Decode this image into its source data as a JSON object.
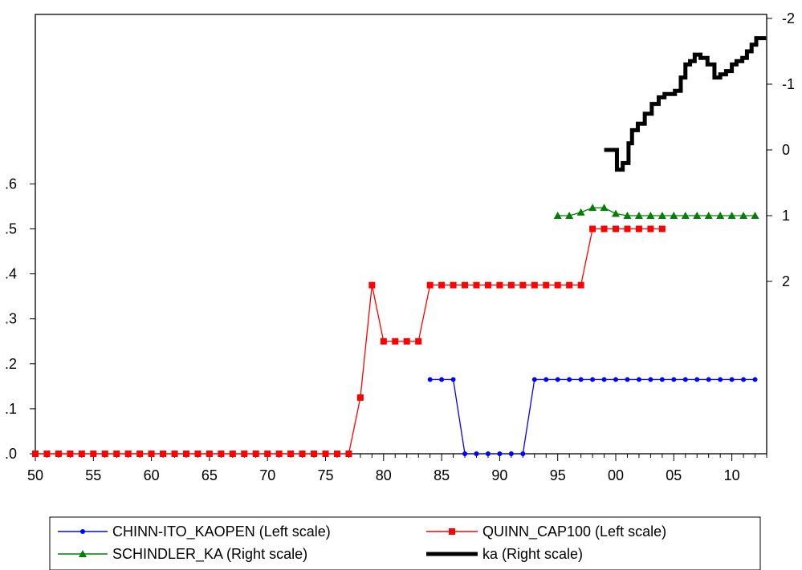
{
  "chart_data": {
    "type": "line",
    "x_axis": {
      "min": 1950,
      "max": 2013,
      "tick_values": [
        1950,
        1955,
        1960,
        1965,
        1970,
        1975,
        1980,
        1985,
        1990,
        1995,
        2000,
        2005,
        2010
      ],
      "tick_labels": [
        "50",
        "55",
        "60",
        "65",
        "70",
        "75",
        "80",
        "85",
        "90",
        "95",
        "00",
        "05",
        "10"
      ]
    },
    "left_axis": {
      "min": 0.0,
      "max": 1.0,
      "tick_values": [
        0.0,
        0.1,
        0.2,
        0.3,
        0.4,
        0.5,
        0.6
      ],
      "tick_labels": [
        ".0",
        ".1",
        ".2",
        ".3",
        ".4",
        ".5",
        ".6"
      ]
    },
    "right_axis": {
      "inverted": true,
      "min": -2,
      "max": 4.4,
      "tick_values": [
        -2,
        -1,
        0,
        1,
        2
      ],
      "tick_labels": [
        "-2",
        "-1",
        "0",
        "1",
        "2"
      ]
    },
    "grid": false,
    "legend_position": "bottom",
    "series": [
      {
        "name": "CHINN-ITO_KAOPEN (Left scale)",
        "axis": "left",
        "color": "#0000ff",
        "marker": "circle",
        "x": [
          1984,
          1985,
          1986,
          1987,
          1988,
          1989,
          1990,
          1991,
          1992,
          1993,
          1994,
          1995,
          1996,
          1997,
          1998,
          1999,
          2000,
          2001,
          2002,
          2003,
          2004,
          2005,
          2006,
          2007,
          2008,
          2009,
          2010,
          2011,
          2012
        ],
        "y": [
          0.165,
          0.165,
          0.165,
          0.0,
          0.0,
          0.0,
          0.0,
          0.0,
          0.0,
          0.165,
          0.165,
          0.165,
          0.165,
          0.165,
          0.165,
          0.165,
          0.165,
          0.165,
          0.165,
          0.165,
          0.165,
          0.165,
          0.165,
          0.165,
          0.165,
          0.165,
          0.165,
          0.165,
          0.165
        ]
      },
      {
        "name": "QUINN_CAP100 (Left scale)",
        "axis": "left",
        "color": "#ff0000",
        "marker": "square",
        "x": [
          1950,
          1951,
          1952,
          1953,
          1954,
          1955,
          1956,
          1957,
          1958,
          1959,
          1960,
          1961,
          1962,
          1963,
          1964,
          1965,
          1966,
          1967,
          1968,
          1969,
          1970,
          1971,
          1972,
          1973,
          1974,
          1975,
          1976,
          1977,
          1978,
          1979,
          1980,
          1981,
          1982,
          1983,
          1984,
          1985,
          1986,
          1987,
          1988,
          1989,
          1990,
          1991,
          1992,
          1993,
          1994,
          1995,
          1996,
          1997,
          1998,
          1999,
          2000,
          2001,
          2002,
          2003,
          2004
        ],
        "y": [
          0,
          0,
          0,
          0,
          0,
          0,
          0,
          0,
          0,
          0,
          0,
          0,
          0,
          0,
          0,
          0,
          0,
          0,
          0,
          0,
          0,
          0,
          0,
          0,
          0,
          0,
          0,
          0,
          0.125,
          0.375,
          0.25,
          0.25,
          0.25,
          0.25,
          0.375,
          0.375,
          0.375,
          0.375,
          0.375,
          0.375,
          0.375,
          0.375,
          0.375,
          0.375,
          0.375,
          0.375,
          0.375,
          0.375,
          0.5,
          0.5,
          0.5,
          0.5,
          0.5,
          0.5,
          0.5
        ]
      },
      {
        "name": "SCHINDLER_KA (Right scale)",
        "axis": "right",
        "color": "#008000",
        "marker": "triangle",
        "x": [
          1995,
          1996,
          1997,
          1998,
          1999,
          2000,
          2001,
          2002,
          2003,
          2004,
          2005,
          2006,
          2007,
          2008,
          2009,
          2010,
          2011,
          2012
        ],
        "y": [
          1.0,
          1.0,
          0.95,
          0.88,
          0.88,
          0.97,
          1.0,
          1.0,
          1.0,
          1.0,
          1.0,
          1.0,
          1.0,
          1.0,
          1.0,
          1.0,
          1.0,
          1.0
        ]
      },
      {
        "name": "ka (Right scale)",
        "axis": "right",
        "color": "#000000",
        "marker": "none",
        "width": 5,
        "step": true,
        "x": [
          1999.0,
          1999.7,
          2000.1,
          2000.6,
          2001.1,
          2001.4,
          2001.9,
          2002.5,
          2003.1,
          2003.7,
          2004.2,
          2004.7,
          2005.1,
          2005.6,
          2006.0,
          2006.4,
          2006.8,
          2007.3,
          2007.9,
          2008.5,
          2009.0,
          2009.5,
          2010.0,
          2010.4,
          2010.9,
          2011.3,
          2011.7,
          2012.1,
          2012.6
        ],
        "y": [
          0.0,
          0.0,
          0.3,
          0.2,
          -0.1,
          -0.3,
          -0.4,
          -0.55,
          -0.7,
          -0.8,
          -0.85,
          -0.85,
          -0.9,
          -1.1,
          -1.3,
          -1.35,
          -1.45,
          -1.4,
          -1.3,
          -1.1,
          -1.15,
          -1.2,
          -1.3,
          -1.35,
          -1.4,
          -1.5,
          -1.6,
          -1.7,
          -1.7
        ]
      }
    ]
  }
}
